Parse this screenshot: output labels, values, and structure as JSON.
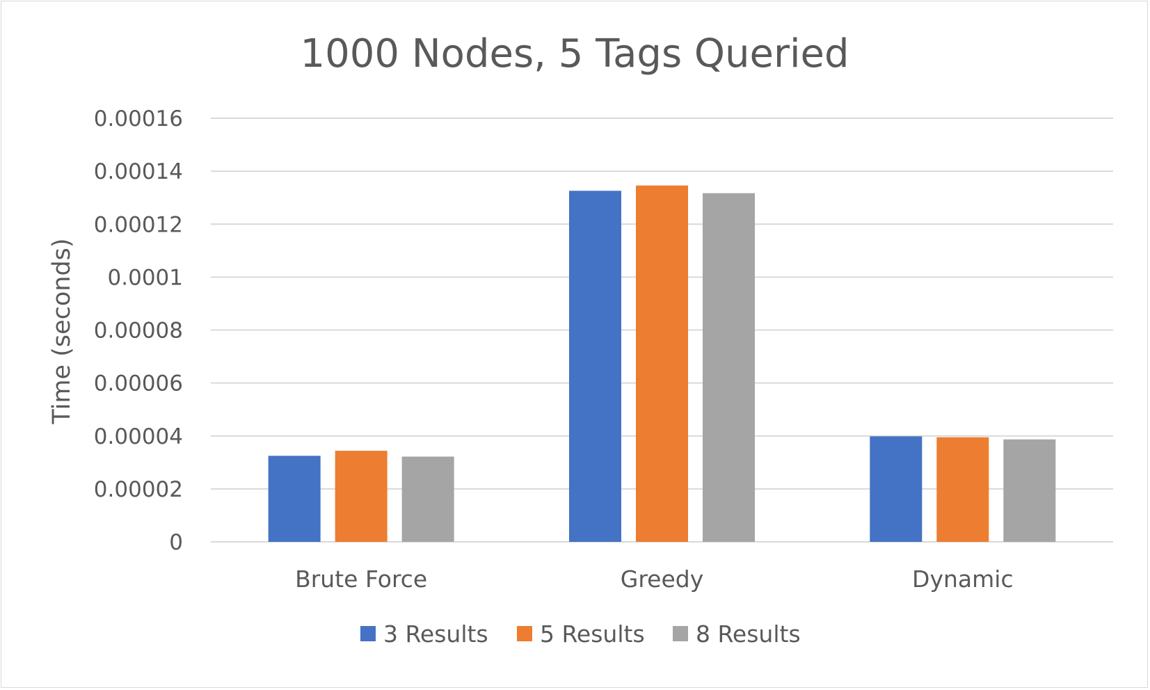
{
  "chart_data": {
    "type": "bar",
    "title": "1000 Nodes, 5 Tags Queried",
    "xlabel": "",
    "ylabel": "Time (seconds)",
    "categories": [
      "Brute Force",
      "Greedy",
      "Dynamic"
    ],
    "ylim": [
      0,
      0.00016
    ],
    "yticks": [
      0,
      2e-05,
      4e-05,
      6e-05,
      8e-05,
      0.0001,
      0.00012,
      0.00014,
      0.00016
    ],
    "ytick_labels": [
      "0",
      "0.00002",
      "0.00004",
      "0.00006",
      "0.00008",
      "0.0001",
      "0.00012",
      "0.00014",
      "0.00016"
    ],
    "grid": true,
    "legend_position": "bottom",
    "series": [
      {
        "name": "3 Results",
        "color": "#4472c4",
        "values": [
          3.25e-05,
          0.0001326,
          3.985e-05
        ]
      },
      {
        "name": "5 Results",
        "color": "#ed7d31",
        "values": [
          3.44e-05,
          0.0001346,
          3.95e-05
        ]
      },
      {
        "name": "8 Results",
        "color": "#a5a5a5",
        "values": [
          3.22e-05,
          0.0001317,
          3.87e-05
        ]
      }
    ]
  }
}
